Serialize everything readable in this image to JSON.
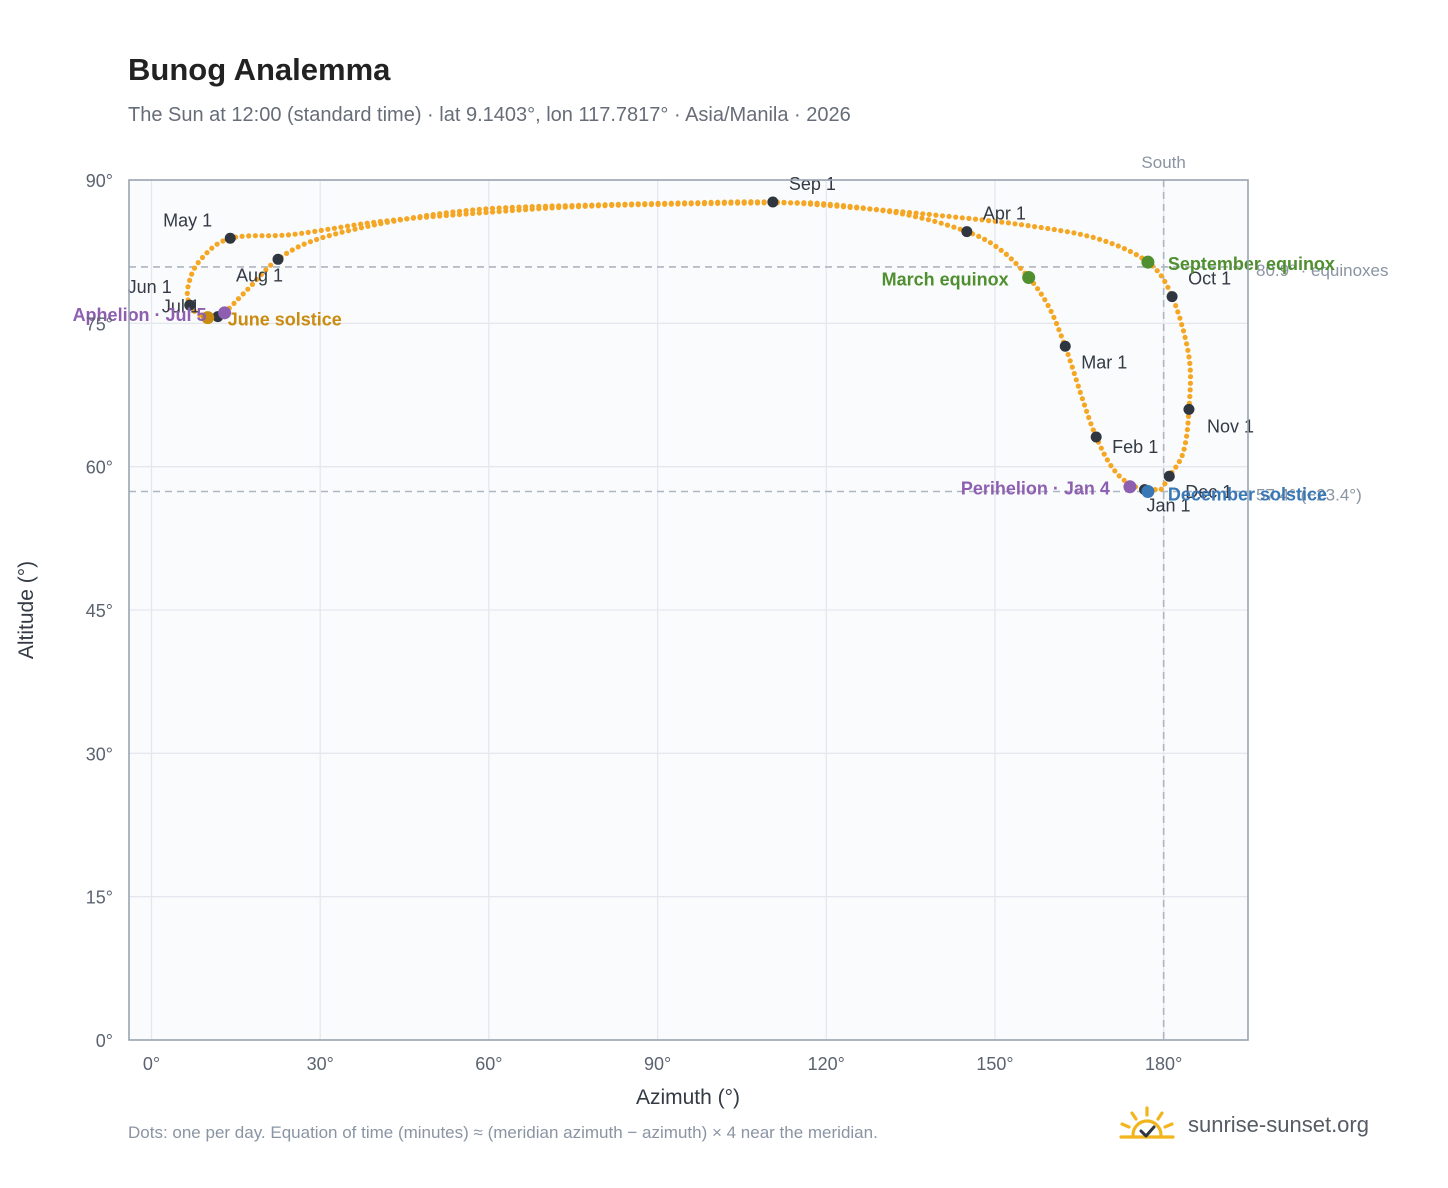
{
  "header": {
    "title": "Bunog Analemma",
    "subtitle": "The Sun at 12:00 (standard time) · lat 9.1403°, lon 117.7817° · Asia/Manila · 2026"
  },
  "footer": {
    "note": "Dots: one per day. Equation of time (minutes) ≈ (meridian azimuth − azimuth) × 4 near the meridian.",
    "brand": "sunrise-sunset.org"
  },
  "colors": {
    "curve": "#f5a623",
    "month_marker": "#2f3640",
    "equinox": "#4f8f2f",
    "june_solstice": "#c98c10",
    "december_solstice": "#3a78b5",
    "aphelion_perihelion": "#8e5fb0",
    "reference_line": "#aeb6c1",
    "plot_background": "#f9fbfd",
    "grid": "#e4e8ee"
  },
  "chart_data": {
    "type": "scatter",
    "xlabel": "Azimuth (°)",
    "ylabel": "Altitude (°)",
    "xlim": [
      -4,
      195
    ],
    "ylim": [
      0,
      90
    ],
    "xticks": [
      0,
      30,
      60,
      90,
      120,
      150,
      180
    ],
    "yticks": [
      0,
      15,
      30,
      45,
      60,
      75,
      90
    ],
    "xtick_labels": [
      "0°",
      "30°",
      "60°",
      "90°",
      "120°",
      "150°",
      "180°"
    ],
    "ytick_labels": [
      "0°",
      "15°",
      "30°",
      "45°",
      "60°",
      "75°",
      "90°"
    ],
    "grid": true,
    "reference_lines": [
      {
        "axis": "x",
        "value": 180,
        "label": "South"
      },
      {
        "axis": "y",
        "value": 80.9,
        "label": "80.9° · equinoxes"
      },
      {
        "axis": "y",
        "value": 57.4,
        "label": "57.4° (−23.4°)"
      }
    ],
    "path": [
      {
        "az": 178.5,
        "alt": 57.6
      },
      {
        "az": 174.5,
        "alt": 58.0
      },
      {
        "az": 171.0,
        "alt": 59.8
      },
      {
        "az": 168.0,
        "alt": 63.1
      },
      {
        "az": 165.5,
        "alt": 67.2
      },
      {
        "az": 162.5,
        "alt": 72.6
      },
      {
        "az": 159.5,
        "alt": 76.8
      },
      {
        "az": 156.0,
        "alt": 79.8
      },
      {
        "az": 151.0,
        "alt": 82.7
      },
      {
        "az": 145.0,
        "alt": 84.6
      },
      {
        "az": 134.0,
        "alt": 86.4
      },
      {
        "az": 120.0,
        "alt": 87.5
      },
      {
        "az": 110.5,
        "alt": 87.6
      },
      {
        "az": 95.0,
        "alt": 87.5
      },
      {
        "az": 75.0,
        "alt": 87.2
      },
      {
        "az": 55.0,
        "alt": 86.4
      },
      {
        "az": 40.0,
        "alt": 85.6
      },
      {
        "az": 25.0,
        "alt": 84.3
      },
      {
        "az": 14.0,
        "alt": 83.9
      },
      {
        "az": 8.5,
        "alt": 81.5
      },
      {
        "az": 6.5,
        "alt": 78.8
      },
      {
        "az": 6.8,
        "alt": 76.9
      },
      {
        "az": 8.5,
        "alt": 75.9
      },
      {
        "az": 10.0,
        "alt": 75.6
      },
      {
        "az": 11.8,
        "alt": 75.7
      },
      {
        "az": 13.0,
        "alt": 76.1
      },
      {
        "az": 17.0,
        "alt": 78.5
      },
      {
        "az": 22.5,
        "alt": 81.7
      },
      {
        "az": 30.0,
        "alt": 83.9
      },
      {
        "az": 45.0,
        "alt": 85.9
      },
      {
        "az": 60.0,
        "alt": 87.0
      },
      {
        "az": 80.0,
        "alt": 87.4
      },
      {
        "az": 95.0,
        "alt": 87.6
      },
      {
        "az": 110.5,
        "alt": 87.7
      },
      {
        "az": 125.0,
        "alt": 87.1
      },
      {
        "az": 140.0,
        "alt": 86.3
      },
      {
        "az": 155.0,
        "alt": 85.3
      },
      {
        "az": 168.0,
        "alt": 83.9
      },
      {
        "az": 177.2,
        "alt": 81.4
      },
      {
        "az": 181.5,
        "alt": 77.8
      },
      {
        "az": 184.5,
        "alt": 71.5
      },
      {
        "az": 184.5,
        "alt": 66.0
      },
      {
        "az": 183.5,
        "alt": 61.5
      },
      {
        "az": 181.0,
        "alt": 59.0
      },
      {
        "az": 179.5,
        "alt": 57.6
      },
      {
        "az": 178.5,
        "alt": 57.6
      }
    ],
    "month_markers": [
      {
        "label": "Jan 1",
        "az": 176.6,
        "alt": 57.6
      },
      {
        "label": "Feb 1",
        "az": 168.0,
        "alt": 63.1
      },
      {
        "label": "Mar 1",
        "az": 162.5,
        "alt": 72.6
      },
      {
        "label": "Apr 1",
        "az": 145.0,
        "alt": 84.6
      },
      {
        "label": "May 1",
        "az": 14.0,
        "alt": 83.9
      },
      {
        "label": "Jun 1",
        "az": 6.8,
        "alt": 76.9
      },
      {
        "label": "Jul 1",
        "az": 11.8,
        "alt": 75.7
      },
      {
        "label": "Aug 1",
        "az": 22.5,
        "alt": 81.7
      },
      {
        "label": "Sep 1",
        "az": 110.5,
        "alt": 87.7
      },
      {
        "label": "Oct 1",
        "az": 181.5,
        "alt": 77.8
      },
      {
        "label": "Nov 1",
        "az": 184.5,
        "alt": 66.0
      },
      {
        "label": "Dec 1",
        "az": 181.0,
        "alt": 59.0
      }
    ],
    "events": [
      {
        "label": "March equinox",
        "az": 156.0,
        "alt": 79.8,
        "color": "#4f8f2f"
      },
      {
        "label": "September equinox",
        "az": 177.2,
        "alt": 81.4,
        "color": "#4f8f2f"
      },
      {
        "label": "June solstice",
        "az": 10.0,
        "alt": 75.6,
        "color": "#c98c10"
      },
      {
        "label": "December solstice",
        "az": 177.2,
        "alt": 57.4,
        "color": "#3a78b5"
      },
      {
        "label": "Aphelion · Jul 5",
        "az": 13.0,
        "alt": 76.1,
        "color": "#8e5fb0"
      },
      {
        "label": "Perihelion · Jan 4",
        "az": 174.0,
        "alt": 57.9,
        "color": "#8e5fb0"
      }
    ]
  }
}
